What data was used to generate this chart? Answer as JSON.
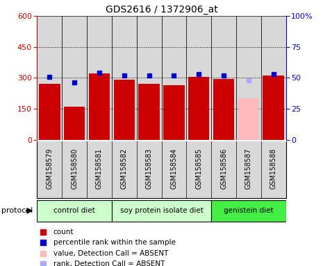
{
  "title": "GDS2616 / 1372906_at",
  "samples": [
    "GSM158579",
    "GSM158580",
    "GSM158581",
    "GSM158582",
    "GSM158583",
    "GSM158584",
    "GSM158585",
    "GSM158586",
    "GSM158587",
    "GSM158588"
  ],
  "bar_values": [
    270,
    160,
    320,
    290,
    270,
    265,
    305,
    295,
    200,
    310
  ],
  "bar_colors": [
    "#cc0000",
    "#cc0000",
    "#cc0000",
    "#cc0000",
    "#cc0000",
    "#cc0000",
    "#cc0000",
    "#cc0000",
    "#ffbbbb",
    "#cc0000"
  ],
  "dot_values": [
    51,
    46,
    54,
    52,
    52,
    52,
    53,
    52,
    48,
    53
  ],
  "dot_absent": [
    false,
    false,
    false,
    false,
    false,
    false,
    false,
    false,
    true,
    false
  ],
  "left_ylim": [
    0,
    600
  ],
  "right_ylim": [
    0,
    100
  ],
  "left_yticks": [
    0,
    150,
    300,
    450,
    600
  ],
  "right_yticks": [
    0,
    25,
    50,
    75,
    100
  ],
  "right_yticklabels": [
    "0",
    "25",
    "50",
    "75",
    "100%"
  ],
  "left_color": "#cc0000",
  "right_color": "#0000cc",
  "groups": [
    {
      "label": "control diet",
      "start": 0,
      "end": 3,
      "color": "#ccffcc"
    },
    {
      "label": "soy protein isolate diet",
      "start": 3,
      "end": 7,
      "color": "#ccffcc"
    },
    {
      "label": "genistein diet",
      "start": 7,
      "end": 10,
      "color": "#44ee44"
    }
  ],
  "legend_items": [
    {
      "label": "count",
      "color": "#cc0000"
    },
    {
      "label": "percentile rank within the sample",
      "color": "#0000cc"
    },
    {
      "label": "value, Detection Call = ABSENT",
      "color": "#ffbbbb"
    },
    {
      "label": "rank, Detection Call = ABSENT",
      "color": "#aaaaff"
    }
  ],
  "protocol_label": "protocol",
  "col_bg": "#d8d8d8",
  "plot_bg": "#ffffff",
  "grid_color": "#000000"
}
